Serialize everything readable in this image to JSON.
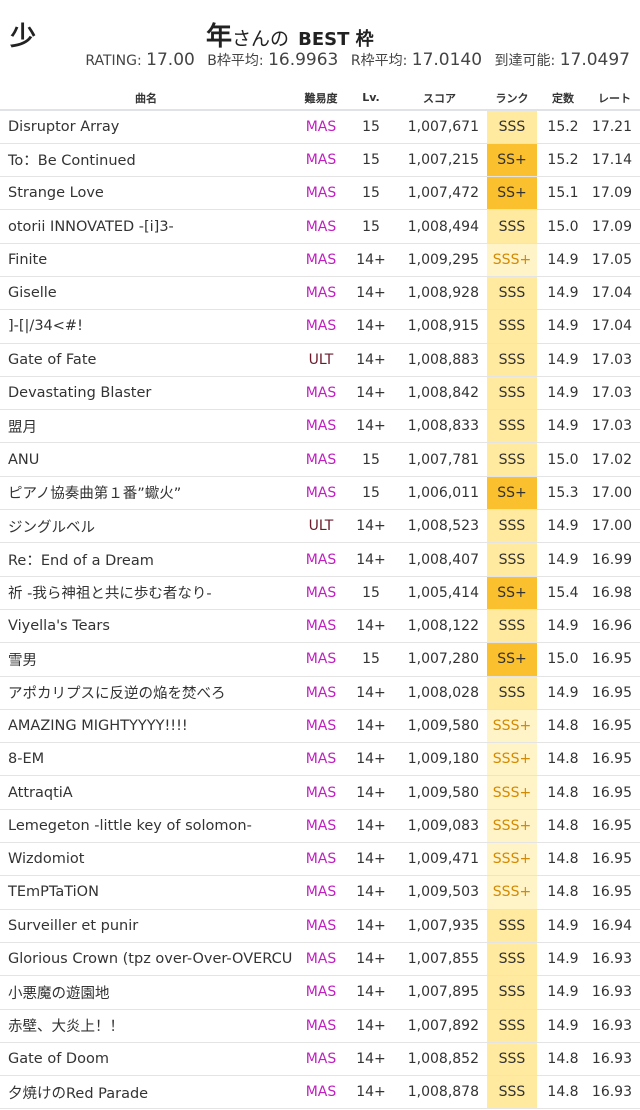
{
  "header": {
    "left_char": "少",
    "title_char": "年",
    "title_suffix": "さんの",
    "title_best": "BEST 枠",
    "rating_label": "RATING:",
    "rating": "17.00",
    "b_label": "B枠平均:",
    "b_avg": "16.9963",
    "r_label": "R枠平均:",
    "r_avg": "17.0140",
    "reach_label": "到達可能:",
    "reach": "17.0497"
  },
  "columns": [
    "曲名",
    "難易度",
    "Lv.",
    "スコア",
    "ランク",
    "定数",
    "レート"
  ],
  "rows": [
    [
      "Disruptor Array",
      "MAS",
      "15",
      "1,007,671",
      "SSS",
      "15.2",
      "17.21"
    ],
    [
      "To：Be Continued",
      "MAS",
      "15",
      "1,007,215",
      "SS+",
      "15.2",
      "17.14"
    ],
    [
      "Strange Love",
      "MAS",
      "15",
      "1,007,472",
      "SS+",
      "15.1",
      "17.09"
    ],
    [
      "otorii INNOVATED -[i]3-",
      "MAS",
      "15",
      "1,008,494",
      "SSS",
      "15.0",
      "17.09"
    ],
    [
      "Finite",
      "MAS",
      "14+",
      "1,009,295",
      "SSS+",
      "14.9",
      "17.05"
    ],
    [
      "Giselle",
      "MAS",
      "14+",
      "1,008,928",
      "SSS",
      "14.9",
      "17.04"
    ],
    [
      "]-[|/34<#!",
      "MAS",
      "14+",
      "1,008,915",
      "SSS",
      "14.9",
      "17.04"
    ],
    [
      "Gate of Fate",
      "ULT",
      "14+",
      "1,008,883",
      "SSS",
      "14.9",
      "17.03"
    ],
    [
      "Devastating Blaster",
      "MAS",
      "14+",
      "1,008,842",
      "SSS",
      "14.9",
      "17.03"
    ],
    [
      "盟月",
      "MAS",
      "14+",
      "1,008,833",
      "SSS",
      "14.9",
      "17.03"
    ],
    [
      "ANU",
      "MAS",
      "15",
      "1,007,781",
      "SSS",
      "15.0",
      "17.02"
    ],
    [
      "ピアノ協奏曲第１番”蠍火”",
      "MAS",
      "15",
      "1,006,011",
      "SS+",
      "15.3",
      "17.00"
    ],
    [
      "ジングルベル",
      "ULT",
      "14+",
      "1,008,523",
      "SSS",
      "14.9",
      "17.00"
    ],
    [
      "Re：End of a Dream",
      "MAS",
      "14+",
      "1,008,407",
      "SSS",
      "14.9",
      "16.99"
    ],
    [
      "祈 -我ら神祖と共に歩む者なり-",
      "MAS",
      "15",
      "1,005,414",
      "SS+",
      "15.4",
      "16.98"
    ],
    [
      "Viyella's Tears",
      "MAS",
      "14+",
      "1,008,122",
      "SSS",
      "14.9",
      "16.96"
    ],
    [
      "雪男",
      "MAS",
      "15",
      "1,007,280",
      "SS+",
      "15.0",
      "16.95"
    ],
    [
      "アポカリプスに反逆の焔を焚べろ",
      "MAS",
      "14+",
      "1,008,028",
      "SSS",
      "14.9",
      "16.95"
    ],
    [
      "AMAZING MIGHTYYYY!!!!",
      "MAS",
      "14+",
      "1,009,580",
      "SSS+",
      "14.8",
      "16.95"
    ],
    [
      "8-EM",
      "MAS",
      "14+",
      "1,009,180",
      "SSS+",
      "14.8",
      "16.95"
    ],
    [
      "AttraqtiA",
      "MAS",
      "14+",
      "1,009,580",
      "SSS+",
      "14.8",
      "16.95"
    ],
    [
      "Lemegeton -little key of solomon-",
      "MAS",
      "14+",
      "1,009,083",
      "SSS+",
      "14.8",
      "16.95"
    ],
    [
      "Wizdomiot",
      "MAS",
      "14+",
      "1,009,471",
      "SSS+",
      "14.8",
      "16.95"
    ],
    [
      "TEmPTaTiON",
      "MAS",
      "14+",
      "1,009,503",
      "SSS+",
      "14.8",
      "16.95"
    ],
    [
      "Surveiller et punir",
      "MAS",
      "14+",
      "1,007,935",
      "SSS",
      "14.9",
      "16.94"
    ],
    [
      "Glorious Crown (tpz over-Over-OVERCUTE REMIX)",
      "MAS",
      "14+",
      "1,007,855",
      "SSS",
      "14.9",
      "16.93"
    ],
    [
      "小悪魔の遊園地",
      "MAS",
      "14+",
      "1,007,895",
      "SSS",
      "14.9",
      "16.93"
    ],
    [
      "赤壁、大炎上！！",
      "MAS",
      "14+",
      "1,007,892",
      "SSS",
      "14.9",
      "16.93"
    ],
    [
      "Gate of Doom",
      "MAS",
      "14+",
      "1,008,852",
      "SSS",
      "14.8",
      "16.93"
    ],
    [
      "夕焼けのRed Parade",
      "MAS",
      "14+",
      "1,008,878",
      "SSS",
      "14.8",
      "16.93"
    ]
  ]
}
